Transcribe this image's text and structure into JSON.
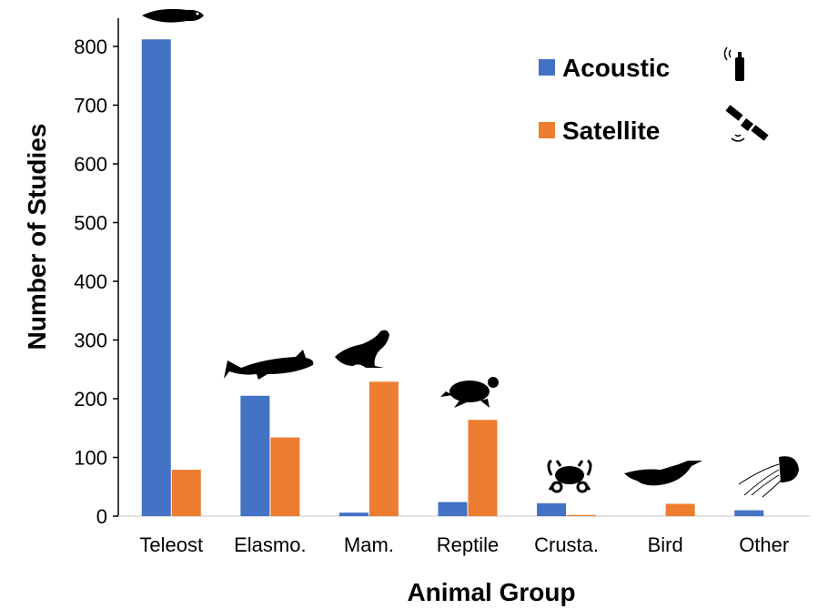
{
  "chart_data": {
    "type": "bar",
    "categories": [
      "Teleost",
      "Elasmo.",
      "Mam.",
      "Reptile",
      "Crusta.",
      "Bird",
      "Other"
    ],
    "series": [
      {
        "name": "Acoustic",
        "values": [
          812,
          205,
          6,
          24,
          22,
          0,
          10
        ],
        "color": "#4472c4"
      },
      {
        "name": "Satellite",
        "values": [
          79,
          134,
          229,
          164,
          2,
          21,
          0
        ],
        "color": "#ed7d31"
      }
    ],
    "xlabel": "Animal Group",
    "ylabel": "Number of Studies",
    "ylim": [
      0,
      900
    ],
    "yticks": [
      0,
      100,
      200,
      300,
      400,
      500,
      600,
      700,
      800
    ],
    "grid": false,
    "legend_position": "top-right",
    "icons": [
      "fish-silhouette-icon",
      "shark-silhouette-icon",
      "seal-silhouette-icon",
      "turtle-silhouette-icon",
      "crab-silhouette-icon",
      "penguin-silhouette-icon",
      "jellyfish-silhouette-icon"
    ],
    "legend_icons": [
      "acoustic-tag-icon",
      "satellite-icon"
    ]
  }
}
